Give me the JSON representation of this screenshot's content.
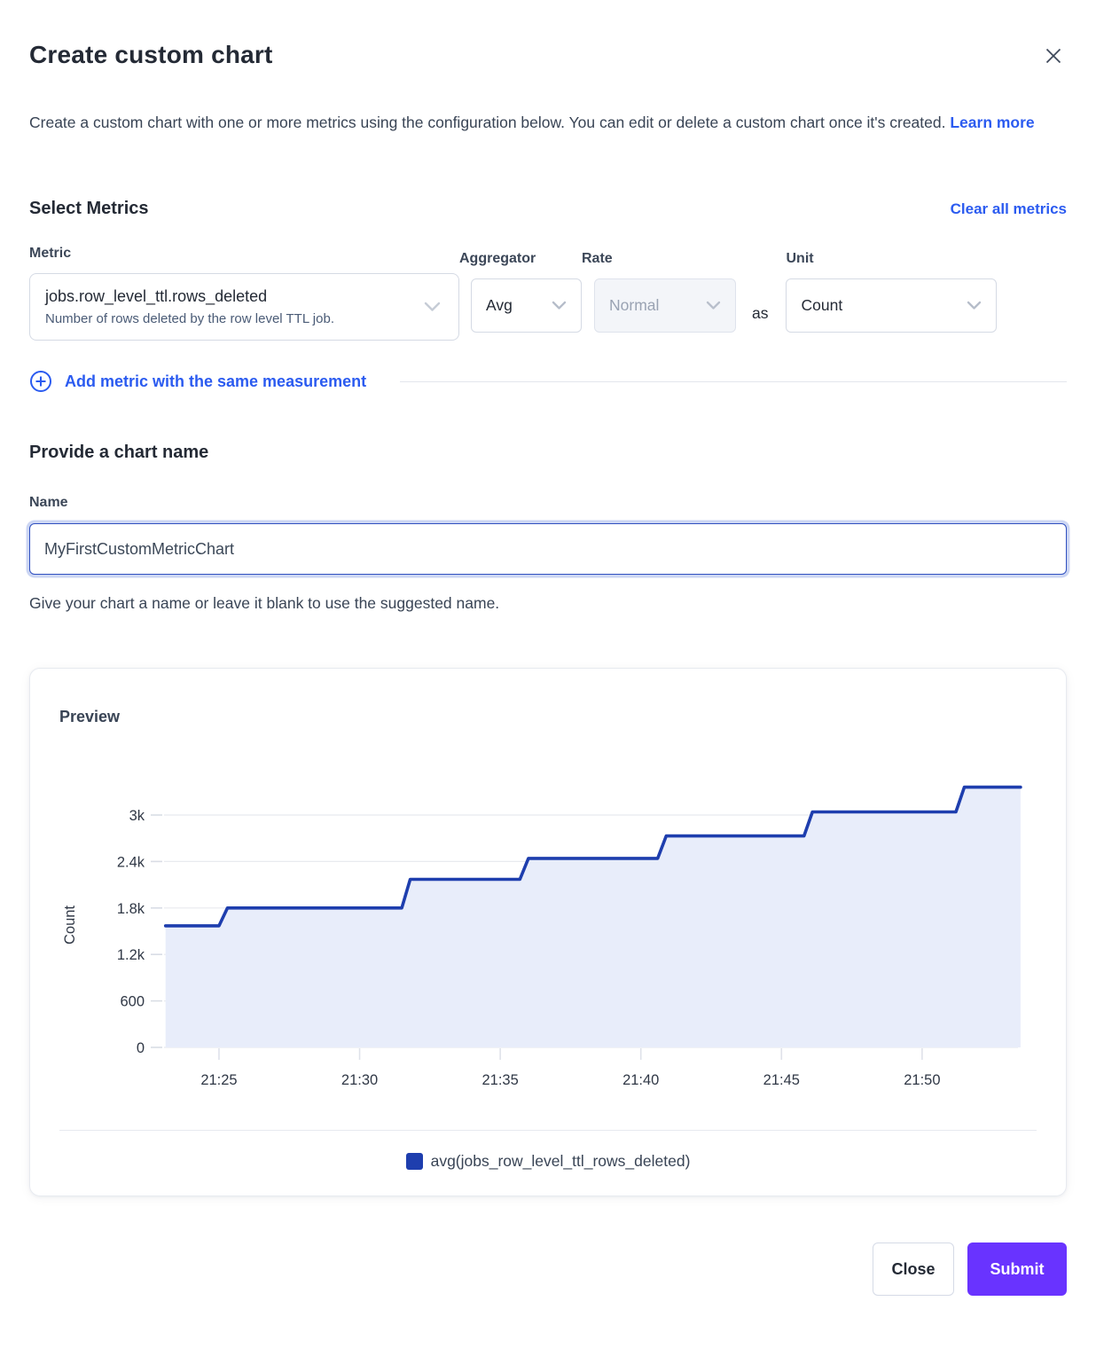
{
  "dialog": {
    "title": "Create custom chart",
    "description": "Create a custom chart with one or more metrics using the configuration below. You can edit or delete a custom chart once it's created.",
    "learn_more_label": "Learn more"
  },
  "metrics_section": {
    "heading": "Select Metrics",
    "clear_all_label": "Clear all metrics",
    "metric": {
      "label": "Metric",
      "value": "jobs.row_level_ttl.rows_deleted",
      "description": "Number of rows deleted by the row level TTL job."
    },
    "aggregator": {
      "label": "Aggregator",
      "value": "Avg"
    },
    "rate": {
      "label": "Rate",
      "value": "Normal",
      "state": "disabled"
    },
    "as_label": "as",
    "unit": {
      "label": "Unit",
      "value": "Count"
    },
    "add_metric_label": "Add metric with the same measurement"
  },
  "chart_name_section": {
    "heading": "Provide a chart name",
    "name_label": "Name",
    "name_value": "MyFirstCustomMetricChart",
    "helper_text": "Give your chart a name or leave it blank to use the suggested name."
  },
  "preview": {
    "heading": "Preview",
    "legend_label": "avg(jobs_row_level_ttl_rows_deleted)"
  },
  "chart_data": {
    "type": "area",
    "subtype": "step-line-cumulative",
    "title": "Preview",
    "ylabel": "Count",
    "xlabel": "",
    "ylim": [
      0,
      3450
    ],
    "x_domain_minutes_after_2100": [
      23.1,
      53.5
    ],
    "grid": "horizontal",
    "legend_position": "bottom",
    "y_ticks": [
      {
        "value": 0,
        "label": "0"
      },
      {
        "value": 600,
        "label": "600"
      },
      {
        "value": 1200,
        "label": "1.2k"
      },
      {
        "value": 1800,
        "label": "1.8k"
      },
      {
        "value": 2400,
        "label": "2.4k"
      },
      {
        "value": 3000,
        "label": "3k"
      }
    ],
    "x_ticks": [
      {
        "minute": 25,
        "label": "21:25"
      },
      {
        "minute": 30,
        "label": "21:30"
      },
      {
        "minute": 35,
        "label": "21:35"
      },
      {
        "minute": 40,
        "label": "21:40"
      },
      {
        "minute": 45,
        "label": "21:45"
      },
      {
        "minute": 50,
        "label": "21:50"
      }
    ],
    "series": [
      {
        "name": "avg(jobs_row_level_ttl_rows_deleted)",
        "color": "#1e3eae",
        "fill": "#e8edfa",
        "points_minute_value": [
          [
            23.1,
            1570
          ],
          [
            25.0,
            1570
          ],
          [
            25.3,
            1800
          ],
          [
            31.5,
            1800
          ],
          [
            31.8,
            2170
          ],
          [
            35.7,
            2170
          ],
          [
            36.0,
            2440
          ],
          [
            40.6,
            2440
          ],
          [
            40.9,
            2730
          ],
          [
            45.8,
            2730
          ],
          [
            46.1,
            3040
          ],
          [
            51.2,
            3040
          ],
          [
            51.5,
            3360
          ],
          [
            53.5,
            3360
          ]
        ]
      }
    ]
  },
  "footer": {
    "close_label": "Close",
    "submit_label": "Submit"
  },
  "colors": {
    "link_blue": "#2b5bf0",
    "submit_purple": "#6933ff",
    "series_line": "#1e3eae",
    "series_fill": "#e8edfa",
    "grid_line": "#e8eaef"
  }
}
